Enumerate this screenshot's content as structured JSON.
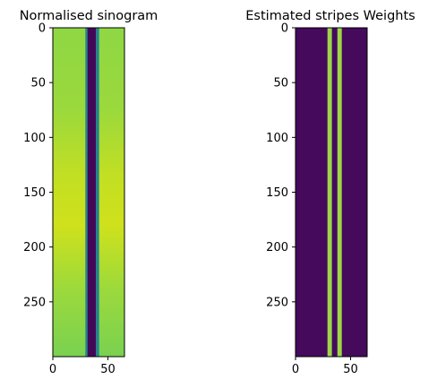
{
  "chart_data": [
    {
      "type": "heatmap",
      "title": "Normalised sinogram",
      "colormap": "viridis",
      "x_range": [
        0,
        65
      ],
      "y_range": [
        0,
        300
      ],
      "y_inverted": true,
      "x_ticks": [
        "0",
        "50"
      ],
      "y_ticks": [
        "0",
        "50",
        "100",
        "150",
        "200",
        "250"
      ],
      "x_tick_values": [
        0,
        50
      ],
      "y_tick_values": [
        0,
        50,
        100,
        150,
        200,
        250
      ],
      "background_value": 0.8,
      "stripes": [
        {
          "x_center": 31,
          "width": 3,
          "value": 0.45
        },
        {
          "x_center": 35.5,
          "width": 8,
          "value": 0.02
        },
        {
          "x_center": 40.5,
          "width": 3,
          "value": 0.45
        }
      ]
    },
    {
      "type": "heatmap",
      "title": "Estimated stripes Weights",
      "colormap": "viridis",
      "x_range": [
        0,
        65
      ],
      "y_range": [
        0,
        300
      ],
      "y_inverted": true,
      "x_ticks": [
        "0",
        "50"
      ],
      "y_ticks": [
        "0",
        "50",
        "100",
        "150",
        "200",
        "250"
      ],
      "x_tick_values": [
        0,
        50
      ],
      "y_tick_values": [
        0,
        50,
        100,
        150,
        200,
        250
      ],
      "background_value": 0.03,
      "stripes": [
        {
          "x_center": 31,
          "width": 4,
          "value": 0.85
        },
        {
          "x_center": 40,
          "width": 4,
          "value": 0.85
        }
      ]
    }
  ]
}
